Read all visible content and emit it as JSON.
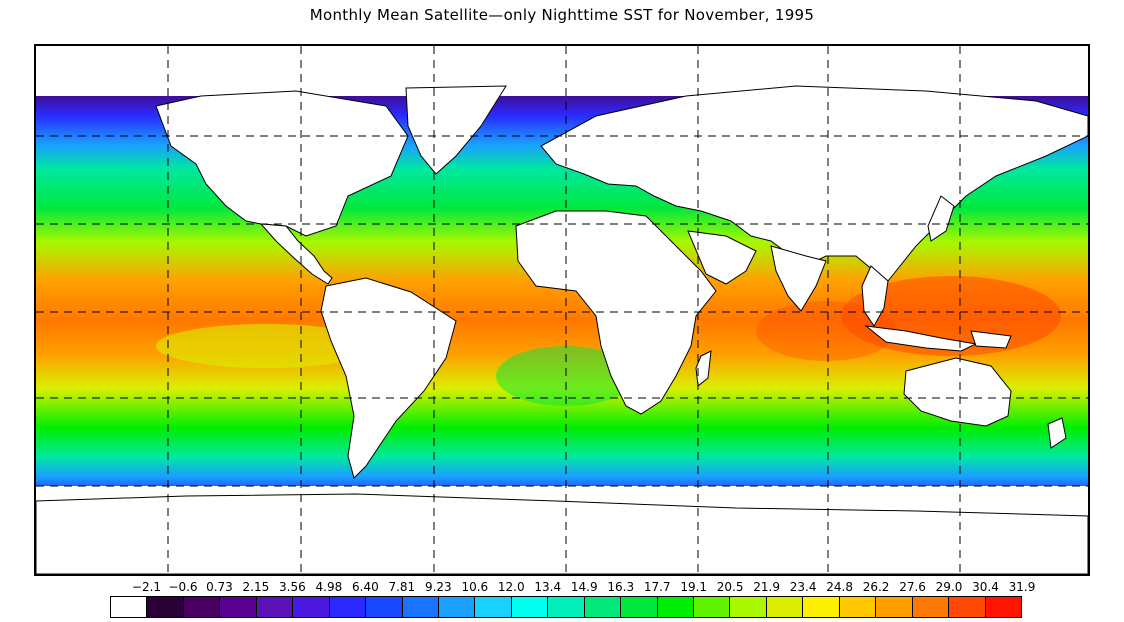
{
  "title": "Monthly Mean Satellite—only Nighttime SST for November, 1995",
  "legend": {
    "ticks": [
      "−2.1",
      "−0.6",
      "0.73",
      "2.15",
      "3.56",
      "4.98",
      "6.40",
      "7.81",
      "9.23",
      "10.6",
      "12.0",
      "13.4",
      "14.9",
      "16.3",
      "17.7",
      "19.1",
      "20.5",
      "21.9",
      "23.4",
      "24.8",
      "26.2",
      "27.6",
      "29.0",
      "30.4",
      "31.9"
    ],
    "colors": [
      "#ffffff",
      "#2a0036",
      "#4a0062",
      "#5a0090",
      "#5a12b8",
      "#4a1ae0",
      "#2a2aff",
      "#1a4aff",
      "#1a74ff",
      "#1aa0ff",
      "#1ad0ff",
      "#00ffee",
      "#00f0bb",
      "#00e87a",
      "#00e83c",
      "#00ee00",
      "#60f400",
      "#a8f800",
      "#d8f000",
      "#fff000",
      "#ffc800",
      "#ffa000",
      "#ff7800",
      "#ff4800",
      "#ff1400"
    ]
  },
  "map": {
    "land_color": "#ffffff",
    "outline_color": "#000000",
    "grid": "dashed",
    "graticule_longitudes": [
      -150,
      -90,
      -30,
      30,
      90,
      150
    ],
    "graticule_latitudes": [
      60,
      30,
      0,
      -30,
      -60
    ]
  }
}
